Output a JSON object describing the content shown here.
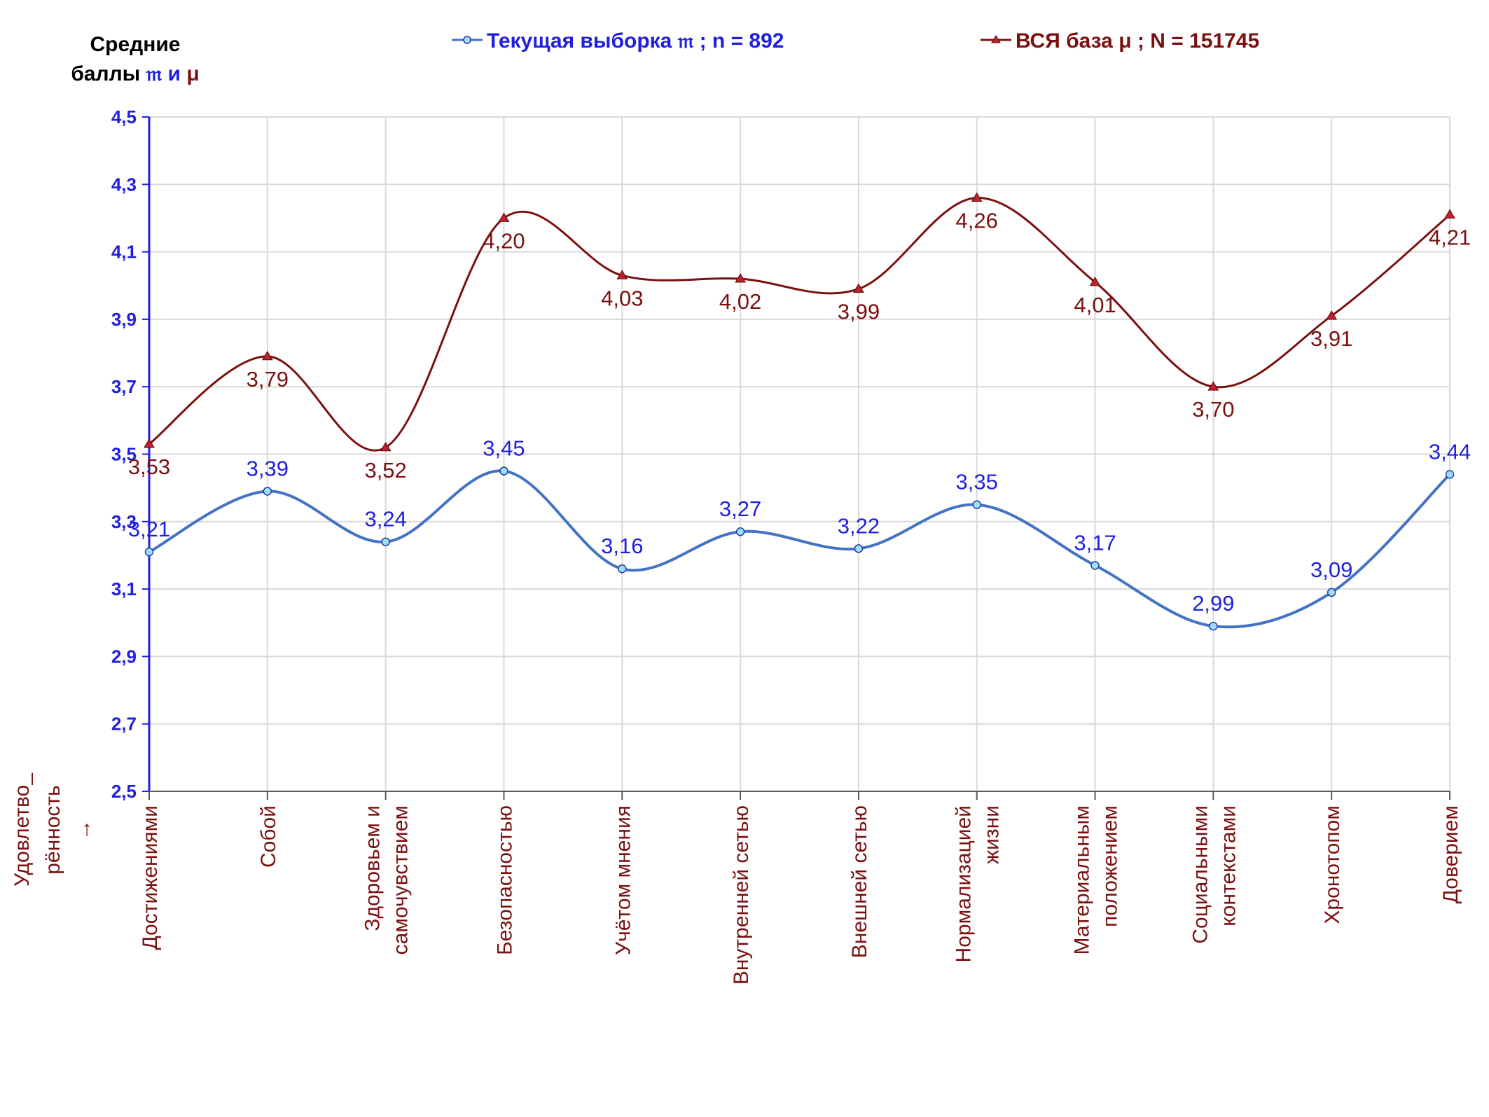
{
  "chart_data": {
    "type": "line",
    "y_title_line1": "Средние",
    "y_title_line2_prefix": "баллы ",
    "y_title_sym_current": "𝔪",
    "y_title_and": " и ",
    "y_title_sym_total": "μ",
    "category_title_lines": [
      "Удовлетво_",
      "рённость",
      "→"
    ],
    "ylim": [
      2.5,
      4.5
    ],
    "y_ticks": [
      "2,5",
      "2,7",
      "2,9",
      "3,1",
      "3,3",
      "3,5",
      "3,7",
      "3,9",
      "4,1",
      "4,3",
      "4,5"
    ],
    "grid": true,
    "legend_placement": "top",
    "categories": [
      [
        "Достижениями"
      ],
      [
        "Собой"
      ],
      [
        "Здоровьем и",
        "самочувствием"
      ],
      [
        "Безопасностью"
      ],
      [
        "Учётом мнения"
      ],
      [
        "Внутренней сетью"
      ],
      [
        "Внешней сетью"
      ],
      [
        "Нормализацией",
        "жизни"
      ],
      [
        "Материальным",
        "положением"
      ],
      [
        "Социальными",
        "контекстами"
      ],
      [
        "Хронотопом"
      ],
      [
        "Доверием"
      ]
    ],
    "series": [
      {
        "name": "Текущая выборка 𝔪 ; n = 892",
        "color": "#4472c4",
        "label_color": "#1f1fe0",
        "marker": "circle",
        "values": [
          3.21,
          3.39,
          3.24,
          3.45,
          3.16,
          3.27,
          3.22,
          3.35,
          3.17,
          2.99,
          3.09,
          3.44
        ],
        "labels": [
          "3,21",
          "3,39",
          "3,24",
          "3,45",
          "3,16",
          "3,27",
          "3,22",
          "3,35",
          "3,17",
          "2,99",
          "3,09",
          "3,44"
        ]
      },
      {
        "name": "ВСЯ база μ ; N = 151745",
        "color": "#7b1010",
        "label_color": "#7b1010",
        "marker": "triangle",
        "values": [
          3.53,
          3.79,
          3.52,
          4.2,
          4.03,
          4.02,
          3.99,
          4.26,
          4.01,
          3.7,
          3.91,
          4.21
        ],
        "labels": [
          "3,53",
          "3,79",
          "3,52",
          "4,20",
          "4,03",
          "4,02",
          "3,99",
          "4,26",
          "4,01",
          "3,70",
          "3,91",
          "4,21"
        ]
      }
    ]
  }
}
